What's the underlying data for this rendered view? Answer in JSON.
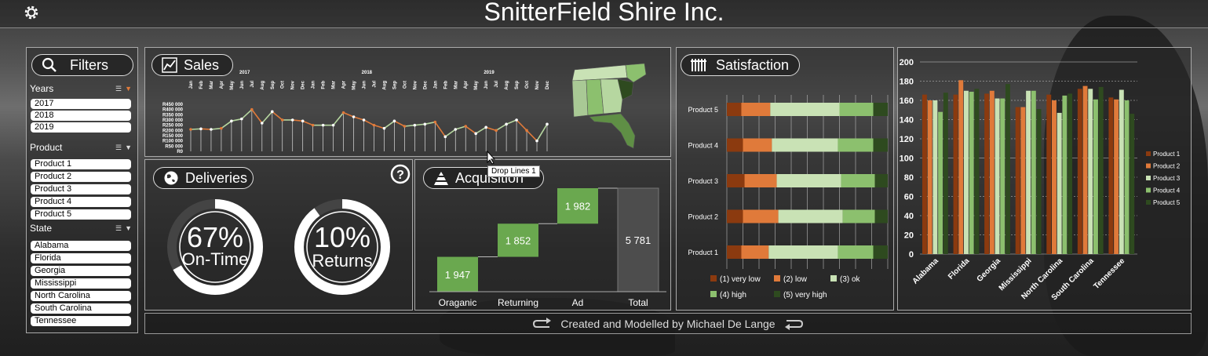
{
  "app_title": "SnitterField Shire Inc.",
  "filters": {
    "title": "Filters",
    "years": {
      "label": "Years",
      "items": [
        "2017",
        "2018",
        "2019"
      ]
    },
    "product": {
      "label": "Product",
      "items": [
        "Product 1",
        "Product 2",
        "Product 3",
        "Product 4",
        "Product 5"
      ]
    },
    "state": {
      "label": "State",
      "items": [
        "Alabama",
        "Florida",
        "Georgia",
        "Mississippi",
        "North Carolina",
        "South Carolina",
        "Tennessee"
      ]
    }
  },
  "sales": {
    "title": "Sales",
    "year_labels": [
      "2017",
      "2018",
      "2019"
    ],
    "y_ticks": [
      "R450 000",
      "R400 000",
      "R350 000",
      "R300 000",
      "R250 000",
      "R200 000",
      "R150 000",
      "R100 000",
      "R50 000",
      "R0"
    ],
    "months": [
      "Jan",
      "Feb",
      "Mar",
      "Apr",
      "May",
      "Jun",
      "Jul",
      "Aug",
      "Sep",
      "Oct",
      "Nov",
      "Dec",
      "Jan",
      "Feb",
      "Mar",
      "Apr",
      "May",
      "Jun",
      "Jul",
      "Aug",
      "Sep",
      "Oct",
      "Nov",
      "Dec",
      "Jan",
      "Feb",
      "Mar",
      "Apr",
      "May",
      "Jun",
      "Jul",
      "Aug",
      "Sep",
      "Oct",
      "Nov",
      "Dec"
    ]
  },
  "deliveries": {
    "title": "Deliveries",
    "on_time": {
      "value": "67%",
      "label": "On-Time",
      "fraction": 0.67
    },
    "returns": {
      "value": "10%",
      "label": "Returns",
      "fraction": 0.1
    }
  },
  "acquisition": {
    "title": "Acquisition",
    "categories": [
      "Oraganic",
      "Returning",
      "Ad",
      "Total"
    ],
    "values": [
      "1 947",
      "1 852",
      "1 982",
      "5 781"
    ]
  },
  "tooltip": "Drop Lines 1",
  "satisfaction": {
    "title": "Satisfaction",
    "products": [
      "Product 5",
      "Product 4",
      "Product 3",
      "Product 2",
      "Product 1"
    ],
    "legend": [
      "(1) very low",
      "(2) low",
      "(3) ok",
      "(4) high",
      "(5) very high"
    ],
    "colors": [
      "#8b3a0f",
      "#e07a3a",
      "#c9e2b5",
      "#8cc06e",
      "#2e4a1f"
    ]
  },
  "chart_data": [
    {
      "type": "line",
      "title": "Sales",
      "x": [
        "Jan 2017",
        "Feb 2017",
        "Mar 2017",
        "Apr 2017",
        "May 2017",
        "Jun 2017",
        "Jul 2017",
        "Aug 2017",
        "Sep 2017",
        "Oct 2017",
        "Nov 2017",
        "Dec 2017",
        "Jan 2018",
        "Feb 2018",
        "Mar 2018",
        "Apr 2018",
        "May 2018",
        "Jun 2018",
        "Jul 2018",
        "Aug 2018",
        "Sep 2018",
        "Oct 2018",
        "Nov 2018",
        "Dec 2018",
        "Jan 2019",
        "Feb 2019",
        "Mar 2019",
        "Apr 2019",
        "May 2019",
        "Jun 2019",
        "Jul 2019",
        "Aug 2019",
        "Sep 2019",
        "Oct 2019",
        "Nov 2019",
        "Dec 2019"
      ],
      "values": [
        210000,
        215000,
        210000,
        220000,
        290000,
        310000,
        400000,
        270000,
        380000,
        300000,
        300000,
        290000,
        250000,
        250000,
        250000,
        370000,
        330000,
        300000,
        250000,
        220000,
        290000,
        240000,
        250000,
        260000,
        280000,
        140000,
        210000,
        240000,
        170000,
        230000,
        200000,
        260000,
        300000,
        200000,
        100000,
        260000
      ],
      "ylim": [
        0,
        450000
      ]
    },
    {
      "type": "bar",
      "title": "Acquisition",
      "categories": [
        "Oraganic",
        "Returning",
        "Ad",
        "Total"
      ],
      "values": [
        1947,
        1852,
        1982,
        5781
      ]
    },
    {
      "type": "bar",
      "title": "Satisfaction",
      "categories": [
        "Product 5",
        "Product 4",
        "Product 3",
        "Product 2",
        "Product 1"
      ],
      "series": [
        {
          "name": "(1) very low",
          "values": [
            9,
            10,
            11,
            10,
            9
          ]
        },
        {
          "name": "(2) low",
          "values": [
            18,
            18,
            20,
            22,
            17
          ]
        },
        {
          "name": "(3) ok",
          "values": [
            43,
            41,
            40,
            40,
            43
          ]
        },
        {
          "name": "(4) high",
          "values": [
            21,
            22,
            21,
            20,
            22
          ]
        },
        {
          "name": "(5) very high",
          "values": [
            9,
            9,
            8,
            8,
            9
          ]
        }
      ]
    },
    {
      "type": "bar",
      "categories": [
        "Alabama",
        "Florida",
        "Georgia",
        "Mississippi",
        "North Carolina",
        "South Carolina",
        "Tennessee"
      ],
      "ylim": [
        0,
        200
      ],
      "y_ticks": [
        "0",
        "20",
        "40",
        "60",
        "80",
        "100",
        "120",
        "140",
        "160",
        "180",
        "200"
      ],
      "series": [
        {
          "name": "Product 1",
          "values": [
            166,
            166,
            167,
            153,
            166,
            172,
            163
          ]
        },
        {
          "name": "Product 2",
          "values": [
            160,
            181,
            170,
            153,
            160,
            175,
            161
          ]
        },
        {
          "name": "Product 3",
          "values": [
            160,
            170,
            162,
            170,
            147,
            172,
            171
          ]
        },
        {
          "name": "Product 4",
          "values": [
            148,
            169,
            162,
            170,
            165,
            161,
            160
          ]
        },
        {
          "name": "Product 5",
          "values": [
            168,
            172,
            177,
            151,
            167,
            174,
            146
          ]
        }
      ],
      "colors": [
        "#8b3a0f",
        "#e07a3a",
        "#c9e2b5",
        "#8cc06e",
        "#2e4a1f"
      ]
    }
  ],
  "footer": {
    "text": "Created and Modelled by Michael De Lange"
  }
}
